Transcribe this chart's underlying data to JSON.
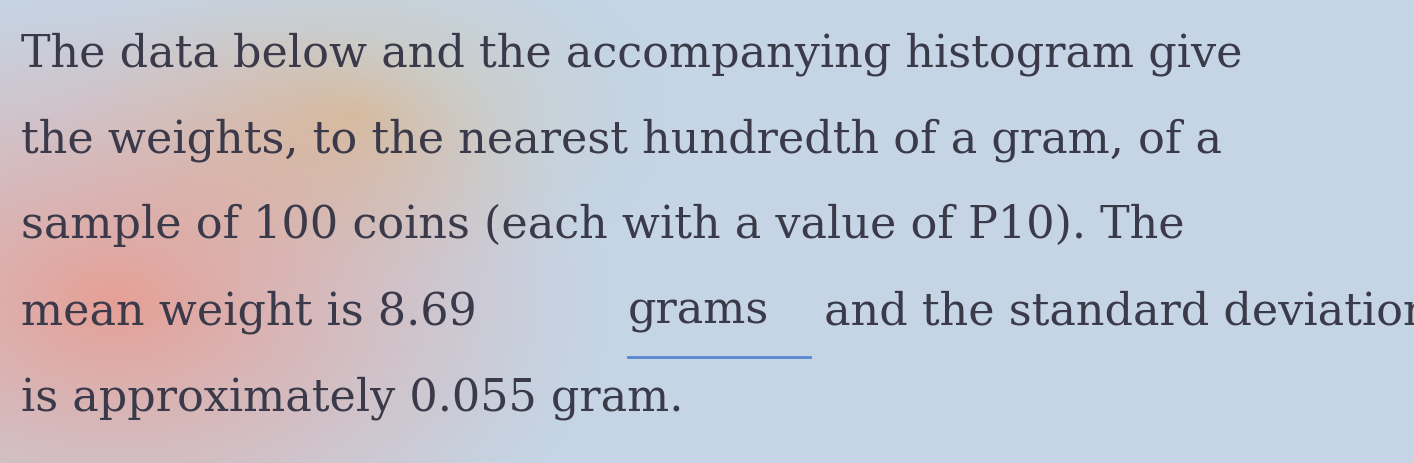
{
  "line1": "The data below and the accompanying histogram give",
  "line2": "the weights, to the nearest hundredth of a gram, of a",
  "line3": "sample of 100 coins (each with a value of P10). The",
  "line4_part1": "mean weight is 8.69 ",
  "line4_underline": "grams",
  "line4_part2": " and the standard deviation s",
  "line5": "is approximately 0.055 gram.",
  "text_color": "#3a3a4a",
  "underline_color": "#5588cc",
  "font_size": 32,
  "figsize": [
    14.14,
    4.64
  ],
  "dpi": 100
}
